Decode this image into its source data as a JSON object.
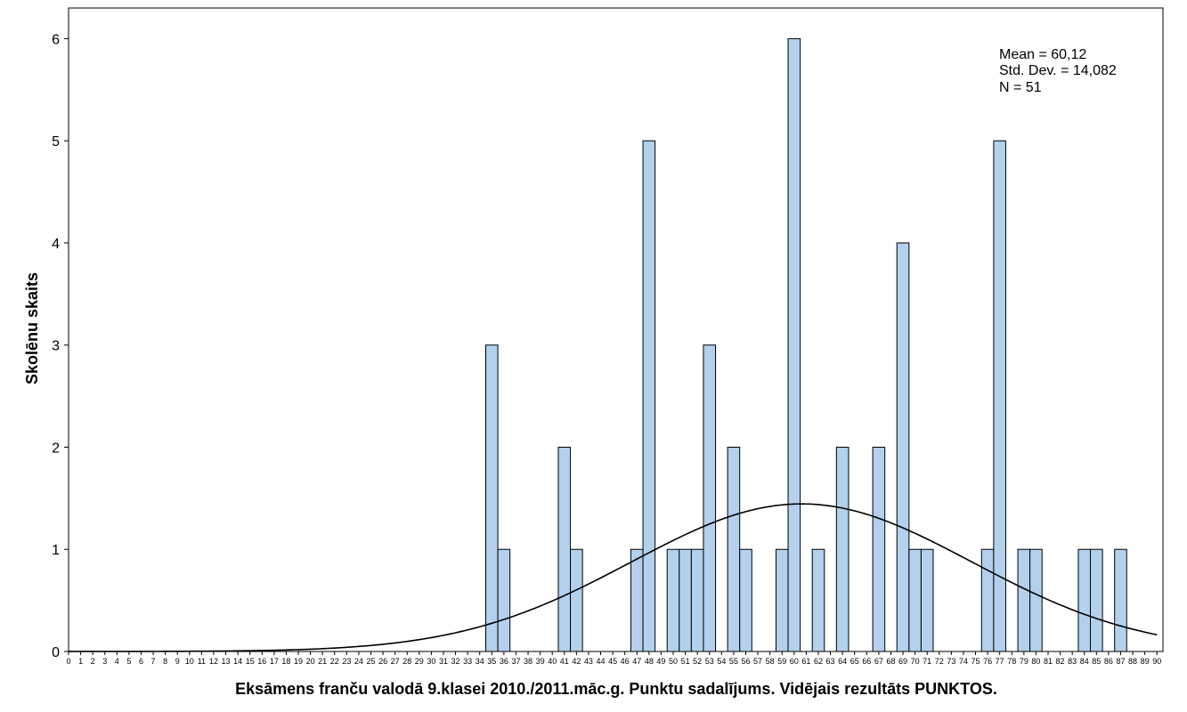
{
  "chart_data": {
    "type": "bar",
    "xlabel": "Eksāmens franču valodā 9.klasei 2010./2011.māc.g. Punktu sadalījums. Vidējais rezultāts PUNKTOS.",
    "ylabel": "Skolēnu skaits",
    "x_categories": [
      "0",
      "1",
      "2",
      "3",
      "4",
      "5",
      "6",
      "7",
      "8",
      "9",
      "10",
      "11",
      "12",
      "13",
      "14",
      "15",
      "16",
      "17",
      "18",
      "19",
      "20",
      "21",
      "22",
      "23",
      "24",
      "25",
      "26",
      "27",
      "28",
      "29",
      "30",
      "31",
      "32",
      "33",
      "34",
      "35",
      "36",
      "37",
      "38",
      "39",
      "40",
      "41",
      "42",
      "43",
      "44",
      "45",
      "46",
      "47",
      "48",
      "49",
      "50",
      "51",
      "52",
      "53",
      "54",
      "55",
      "56",
      "57",
      "58",
      "59",
      "60",
      "61",
      "62",
      "63",
      "64",
      "65",
      "66",
      "67",
      "68",
      "69",
      "70",
      "71",
      "72",
      "73",
      "74",
      "75",
      "76",
      "77",
      "78",
      "79",
      "80",
      "81",
      "82",
      "83",
      "84",
      "85",
      "86",
      "87",
      "88",
      "89",
      "90"
    ],
    "bars": [
      {
        "x": 35,
        "count": 3
      },
      {
        "x": 36,
        "count": 1
      },
      {
        "x": 41,
        "count": 2
      },
      {
        "x": 42,
        "count": 1
      },
      {
        "x": 47,
        "count": 1
      },
      {
        "x": 48,
        "count": 5
      },
      {
        "x": 50,
        "count": 1
      },
      {
        "x": 51,
        "count": 1
      },
      {
        "x": 52,
        "count": 1
      },
      {
        "x": 53,
        "count": 3
      },
      {
        "x": 55,
        "count": 2
      },
      {
        "x": 56,
        "count": 1
      },
      {
        "x": 59,
        "count": 1
      },
      {
        "x": 60,
        "count": 6
      },
      {
        "x": 62,
        "count": 1
      },
      {
        "x": 64,
        "count": 2
      },
      {
        "x": 67,
        "count": 2
      },
      {
        "x": 69,
        "count": 4
      },
      {
        "x": 70,
        "count": 1
      },
      {
        "x": 71,
        "count": 1
      },
      {
        "x": 76,
        "count": 1
      },
      {
        "x": 77,
        "count": 5
      },
      {
        "x": 79,
        "count": 1
      },
      {
        "x": 80,
        "count": 1
      },
      {
        "x": 84,
        "count": 1
      },
      {
        "x": 85,
        "count": 1
      },
      {
        "x": 87,
        "count": 1
      }
    ],
    "ylim": [
      0,
      6.3
    ],
    "y_ticks": [
      "0",
      "1",
      "2",
      "3",
      "4",
      "5",
      "6"
    ],
    "normal_curve": {
      "mean": 60.12,
      "sd": 14.082,
      "n": 51
    },
    "stats": {
      "mean": "Mean = 60,12",
      "sd": "Std. Dev. = 14,082",
      "n": "N = 51"
    },
    "bar_color": "#b3d1ed",
    "bar_stroke": "#000000",
    "curve_color": "#000000",
    "grid": false,
    "legend_position": "top-right"
  }
}
